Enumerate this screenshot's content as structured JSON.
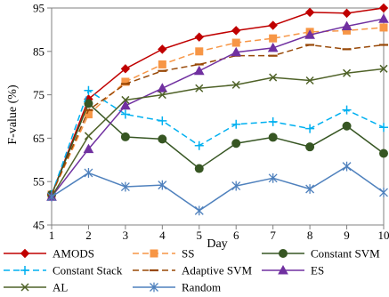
{
  "chart_data": {
    "type": "line",
    "title": "",
    "xlabel": "Day",
    "ylabel": "F-value (%)",
    "xlim": [
      1,
      10
    ],
    "ylim": [
      45,
      95
    ],
    "x": [
      1,
      2,
      3,
      4,
      5,
      6,
      7,
      8,
      9,
      10
    ],
    "x_ticks": [
      "1",
      "2",
      "3",
      "4",
      "5",
      "6",
      "7",
      "8",
      "9",
      "10"
    ],
    "y_ticks": [
      45,
      55,
      65,
      75,
      85,
      95
    ],
    "y_tick_labels": [
      "45",
      "55",
      "65",
      "75",
      "85",
      "95"
    ],
    "grid": false,
    "legend_position": "bottom",
    "series": [
      {
        "name": "AMODS",
        "color": "#c00000",
        "dash": "solid",
        "marker": "diamond",
        "values": [
          52,
          74,
          81,
          85.5,
          88.3,
          89.8,
          91,
          94,
          93.8,
          95
        ]
      },
      {
        "name": "SS",
        "color": "#f79646",
        "dash": "dash",
        "marker": "square",
        "values": [
          52,
          70.5,
          78,
          82,
          85,
          87,
          88,
          89.5,
          89.8,
          90.5
        ]
      },
      {
        "name": "Constant SVM",
        "color": "#375623",
        "dash": "solid",
        "marker": "circle",
        "values": [
          52,
          73,
          65.3,
          64.8,
          58,
          63.8,
          65.2,
          63,
          67.8,
          61.5
        ]
      },
      {
        "name": "Constant Stack",
        "color": "#00b0f0",
        "dash": "dash",
        "marker": "plus",
        "values": [
          52,
          76,
          70.5,
          69,
          63.3,
          68.2,
          68.8,
          67.2,
          71.5,
          67.5
        ]
      },
      {
        "name": "Adaptive SVM",
        "color": "#984807",
        "dash": "dash",
        "marker": "dash",
        "values": [
          52,
          71.5,
          77.5,
          80.5,
          82,
          84,
          84,
          86.5,
          85.5,
          86.5
        ]
      },
      {
        "name": "ES",
        "color": "#7030a0",
        "dash": "solid",
        "marker": "triangle",
        "values": [
          51.5,
          62.5,
          72.5,
          76.5,
          80.5,
          84.8,
          85.8,
          88.8,
          90.8,
          92.5
        ]
      },
      {
        "name": "AL",
        "color": "#4f6228",
        "dash": "solid",
        "marker": "x",
        "values": [
          51.5,
          65.5,
          73.8,
          75,
          76.5,
          77.3,
          79,
          78.3,
          80,
          81
        ]
      },
      {
        "name": "Random",
        "color": "#4f81bd",
        "dash": "solid",
        "marker": "star",
        "values": [
          51.5,
          57,
          53.8,
          54.2,
          48.3,
          54,
          55.8,
          53.3,
          58.5,
          52.5
        ]
      }
    ]
  }
}
